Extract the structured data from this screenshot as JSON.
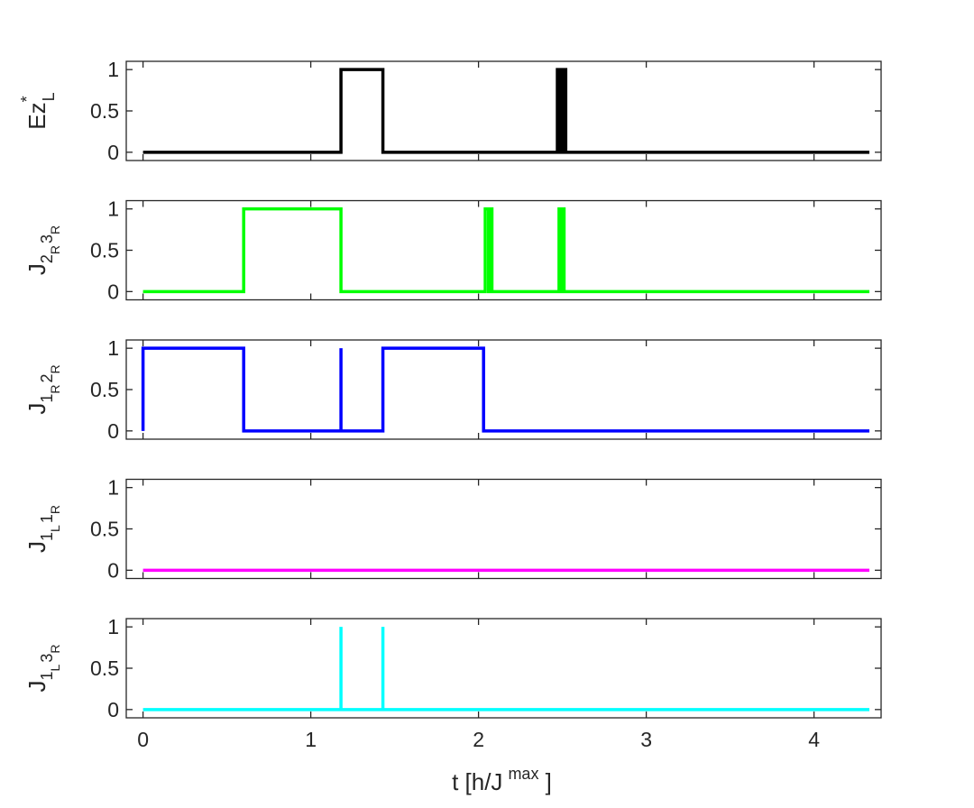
{
  "chart_data": {
    "type": "line",
    "step": true,
    "xlabel": {
      "main": "t [h/J",
      "sup": "max",
      "close": " ]"
    },
    "xlim": [
      -0.1,
      4.4
    ],
    "xticks": [
      0,
      1,
      2,
      3,
      4
    ],
    "ylim": [
      -0.1,
      1.1
    ],
    "yticks": [
      0,
      0.5,
      1
    ],
    "ytick_labels": [
      "0",
      "0.5",
      "1"
    ],
    "grid": false,
    "panels": [
      {
        "ylabel": {
          "base": "Ez",
          "sup": "*",
          "sub": "L"
        },
        "color": "#000000",
        "series": [
          {
            "x": 0,
            "y": 0
          },
          {
            "x": 1.18,
            "y": 0
          },
          {
            "x": 1.18,
            "y": 1
          },
          {
            "x": 1.43,
            "y": 1
          },
          {
            "x": 1.43,
            "y": 0
          },
          {
            "x": 2.47,
            "y": 0
          },
          {
            "x": 2.47,
            "y": 1
          },
          {
            "x": 2.48,
            "y": 1
          },
          {
            "x": 2.48,
            "y": 0
          },
          {
            "x": 2.49,
            "y": 0
          },
          {
            "x": 2.49,
            "y": 1
          },
          {
            "x": 2.5,
            "y": 1
          },
          {
            "x": 2.5,
            "y": 0
          },
          {
            "x": 2.51,
            "y": 0
          },
          {
            "x": 2.51,
            "y": 1
          },
          {
            "x": 2.52,
            "y": 1
          },
          {
            "x": 2.52,
            "y": 0
          },
          {
            "x": 4.33,
            "y": 0
          }
        ]
      },
      {
        "ylabel": {
          "parts": [
            "J",
            "2",
            "R",
            "3",
            "R"
          ]
        },
        "color": "#00ff00",
        "series": [
          {
            "x": 0,
            "y": 0
          },
          {
            "x": 0.6,
            "y": 0
          },
          {
            "x": 0.6,
            "y": 1
          },
          {
            "x": 1.18,
            "y": 1
          },
          {
            "x": 1.18,
            "y": 0
          },
          {
            "x": 2.04,
            "y": 0
          },
          {
            "x": 2.04,
            "y": 1
          },
          {
            "x": 2.06,
            "y": 1
          },
          {
            "x": 2.06,
            "y": 0
          },
          {
            "x": 2.07,
            "y": 0
          },
          {
            "x": 2.07,
            "y": 1
          },
          {
            "x": 2.08,
            "y": 1
          },
          {
            "x": 2.08,
            "y": 0
          },
          {
            "x": 2.48,
            "y": 0
          },
          {
            "x": 2.48,
            "y": 1
          },
          {
            "x": 2.49,
            "y": 1
          },
          {
            "x": 2.49,
            "y": 0
          },
          {
            "x": 2.5,
            "y": 0
          },
          {
            "x": 2.5,
            "y": 1
          },
          {
            "x": 2.51,
            "y": 1
          },
          {
            "x": 2.51,
            "y": 0
          },
          {
            "x": 4.33,
            "y": 0
          }
        ]
      },
      {
        "ylabel": {
          "parts": [
            "J",
            "1",
            "R",
            "2",
            "R"
          ]
        },
        "color": "#0000ff",
        "series": [
          {
            "x": 0,
            "y": 0
          },
          {
            "x": 0,
            "y": 1
          },
          {
            "x": 0.6,
            "y": 1
          },
          {
            "x": 0.6,
            "y": 0
          },
          {
            "x": 1.18,
            "y": 0
          },
          {
            "x": 1.18,
            "y": 1
          },
          {
            "x": 1.18,
            "y": 0
          },
          {
            "x": 1.43,
            "y": 0
          },
          {
            "x": 1.43,
            "y": 1
          },
          {
            "x": 2.03,
            "y": 1
          },
          {
            "x": 2.03,
            "y": 0
          },
          {
            "x": 4.33,
            "y": 0
          }
        ]
      },
      {
        "ylabel": {
          "parts": [
            "J",
            "1",
            "L",
            "1",
            "R"
          ]
        },
        "color": "#ff00ff",
        "series": [
          {
            "x": 0,
            "y": 0
          },
          {
            "x": 4.33,
            "y": 0
          }
        ]
      },
      {
        "ylabel": {
          "parts": [
            "J",
            "1",
            "L",
            "3",
            "R"
          ]
        },
        "color": "#00ffff",
        "series": [
          {
            "x": 0,
            "y": 0
          },
          {
            "x": 1.18,
            "y": 0
          },
          {
            "x": 1.18,
            "y": 1
          },
          {
            "x": 1.18,
            "y": 0
          },
          {
            "x": 1.43,
            "y": 0
          },
          {
            "x": 1.43,
            "y": 1
          },
          {
            "x": 1.43,
            "y": 0
          },
          {
            "x": 4.33,
            "y": 0
          }
        ]
      }
    ]
  }
}
